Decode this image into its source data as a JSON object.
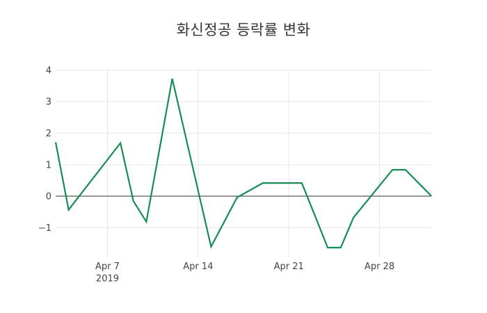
{
  "title": "화신정공 등락률 변화",
  "chart_data": {
    "type": "line",
    "title": "화신정공 등락률 변화",
    "xlabel": "",
    "ylabel": "",
    "legend": "none",
    "grid": true,
    "background": "#ffffff",
    "line_color": "#158D55",
    "zero_line_color": "#323232",
    "grid_color": "#e7e7e7",
    "tick_text_color": "#444444",
    "x_range": [
      "2019-04-03",
      "2019-05-02"
    ],
    "ylim": [
      -1.94,
      4.02
    ],
    "y_ticks": [
      -1,
      0,
      1,
      2,
      3,
      4
    ],
    "x_ticks": [
      {
        "date": "2019-04-07",
        "label": "Apr 7",
        "sublabel": "2019"
      },
      {
        "date": "2019-04-14",
        "label": "Apr 14",
        "sublabel": ""
      },
      {
        "date": "2019-04-21",
        "label": "Apr 21",
        "sublabel": ""
      },
      {
        "date": "2019-04-28",
        "label": "Apr 28",
        "sublabel": ""
      }
    ],
    "x": [
      "2019-04-03",
      "2019-04-04",
      "2019-04-05",
      "2019-04-08",
      "2019-04-09",
      "2019-04-10",
      "2019-04-11",
      "2019-04-12",
      "2019-04-15",
      "2019-04-16",
      "2019-04-17",
      "2019-04-18",
      "2019-04-19",
      "2019-04-22",
      "2019-04-23",
      "2019-04-24",
      "2019-04-25",
      "2019-04-26",
      "2019-04-29",
      "2019-04-30",
      "2019-05-02"
    ],
    "values": [
      1.71,
      -0.43,
      0.1,
      1.69,
      -0.15,
      -0.81,
      1.46,
      3.73,
      -1.6,
      -0.82,
      -0.04,
      0.19,
      0.42,
      0.42,
      -0.6,
      -1.63,
      -1.63,
      -0.67,
      0.84,
      0.84,
      0.01
    ]
  }
}
